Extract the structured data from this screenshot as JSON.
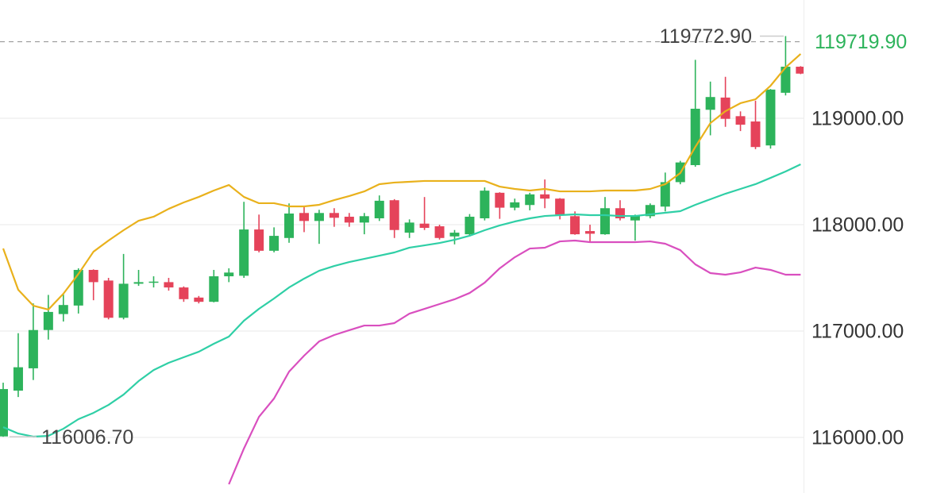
{
  "chart_data": {
    "type": "candlestick",
    "open": [
      116010,
      116440,
      116650,
      117010,
      117160,
      117240,
      117575,
      117475,
      117125,
      117445,
      117455,
      117460,
      117410,
      117315,
      117275,
      117515,
      117520,
      117955,
      117755,
      117875,
      118110,
      118035,
      118110,
      118075,
      118020,
      118060,
      118230,
      117925,
      118010,
      117985,
      117890,
      117910,
      118060,
      118300,
      118160,
      118185,
      118285,
      118245,
      118080,
      117940,
      117910,
      118155,
      118040,
      118080,
      118170,
      118400,
      118560,
      119080,
      119195,
      119020,
      118970,
      118745,
      119240,
      119485
    ],
    "high": [
      116515,
      116980,
      117260,
      117340,
      117350,
      117590,
      117580,
      117500,
      117725,
      117575,
      117515,
      117500,
      117420,
      117330,
      117575,
      117590,
      118215,
      118095,
      117975,
      118200,
      118170,
      118140,
      118155,
      118110,
      118110,
      118275,
      118240,
      118050,
      118260,
      118000,
      117950,
      118100,
      118350,
      118305,
      118245,
      118300,
      118425,
      118250,
      118125,
      118000,
      118260,
      118230,
      118095,
      118200,
      118490,
      118600,
      119550,
      119345,
      119390,
      119065,
      119165,
      119275,
      119772.9,
      119490
    ],
    "low": [
      116006.7,
      116380,
      116540,
      116920,
      117090,
      117165,
      117290,
      117110,
      117110,
      117425,
      117410,
      117380,
      117275,
      117260,
      117270,
      117460,
      117500,
      117740,
      117740,
      117830,
      117930,
      117820,
      117980,
      117980,
      117910,
      118035,
      117875,
      117875,
      117950,
      117860,
      117815,
      117890,
      118040,
      118055,
      118135,
      118135,
      118155,
      118050,
      117905,
      117835,
      117905,
      118040,
      117850,
      118060,
      118125,
      118380,
      118545,
      118840,
      118920,
      118880,
      118710,
      118715,
      119215,
      119415
    ],
    "close": [
      116455,
      116660,
      117010,
      117180,
      117245,
      117575,
      117460,
      117125,
      117445,
      117460,
      117465,
      117410,
      117300,
      117275,
      117515,
      117550,
      117955,
      117755,
      117895,
      118105,
      118035,
      118110,
      118065,
      118020,
      118080,
      118225,
      117950,
      118020,
      117970,
      117875,
      117925,
      118075,
      118320,
      118160,
      118210,
      118285,
      118245,
      118095,
      117910,
      117915,
      118155,
      118060,
      118080,
      118185,
      118400,
      118585,
      119090,
      119200,
      118995,
      118940,
      118730,
      119270,
      119485,
      119420
    ],
    "up_color": "#2db35b",
    "down_color": "#e5435a",
    "lines": [
      {
        "color": "#e9b11c",
        "values": [
          117776,
          117388,
          117239,
          117202,
          117351,
          117537,
          117746,
          117851,
          117948,
          118037,
          118075,
          118149,
          118209,
          118261,
          118321,
          118373,
          118261,
          118202,
          118202,
          118172,
          118172,
          118187,
          118231,
          118269,
          118313,
          118381,
          118396,
          118403,
          118411,
          118411,
          118411,
          118411,
          118411,
          118358,
          118336,
          118321,
          118336,
          118313,
          118313,
          118313,
          118321,
          118321,
          118321,
          118336,
          118381,
          118485,
          118731,
          118955,
          119067,
          119142,
          119179,
          119306,
          119478,
          119605
        ]
      },
      {
        "color": "#2fcfa6",
        "values": [
          116097,
          116037,
          116008,
          116015,
          116082,
          116172,
          116231,
          116306,
          116403,
          116530,
          116634,
          116702,
          116754,
          116806,
          116881,
          116948,
          117097,
          117209,
          117306,
          117410,
          117493,
          117567,
          117612,
          117649,
          117679,
          117709,
          117739,
          117784,
          117806,
          117828,
          117858,
          117896,
          117948,
          117993,
          118030,
          118060,
          118082,
          118090,
          118097,
          118090,
          118090,
          118082,
          118082,
          118097,
          118112,
          118127,
          118187,
          118239,
          118291,
          118336,
          118381,
          118440,
          118500,
          118567
        ]
      },
      {
        "color": "#d94fbf",
        "values": [
          null,
          null,
          null,
          null,
          null,
          null,
          null,
          null,
          null,
          null,
          null,
          null,
          null,
          null,
          null,
          115560,
          115896,
          116194,
          116366,
          116619,
          116769,
          116903,
          116963,
          117008,
          117052,
          117052,
          117075,
          117164,
          117209,
          117254,
          117299,
          117358,
          117455,
          117590,
          117694,
          117776,
          117784,
          117843,
          117851,
          117836,
          117836,
          117836,
          117836,
          117843,
          117821,
          117761,
          117627,
          117545,
          117530,
          117552,
          117597,
          117575,
          117530,
          117530
        ]
      }
    ],
    "ylim": [
      115478,
      120112
    ],
    "yticks": [
      {
        "value": 116000,
        "label": "116000.00"
      },
      {
        "value": 117000,
        "label": "117000.00"
      },
      {
        "value": 118000,
        "label": "118000.00"
      },
      {
        "value": 119000,
        "label": "119000.00"
      }
    ],
    "grid": true,
    "last_price": {
      "value": 119719.9,
      "label": "119719.90"
    },
    "high_marker": {
      "value": 119772.9,
      "label": "119772.90"
    },
    "low_marker": {
      "value": 116006.7,
      "label": "116006.70"
    }
  }
}
